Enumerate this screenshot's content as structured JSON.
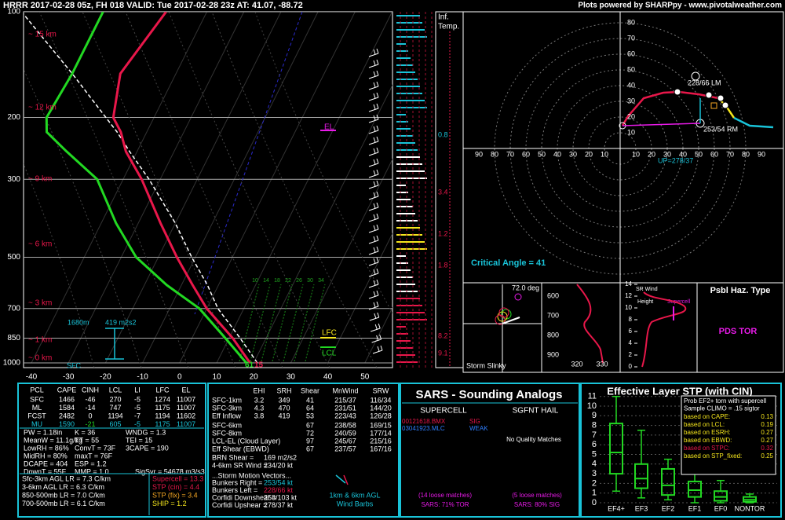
{
  "header": {
    "title": "HRRR 2017-02-28 05z, FH 018   VALID: Tue 2017-02-28 23z   AT: 41.07, -88.72",
    "credit": "Plots powered by SHARPpy - www.pivotalweather.com"
  },
  "skewt": {
    "pressure_ticks": [
      100,
      200,
      300,
      500,
      700,
      850,
      1000
    ],
    "temp_ticks": [
      -40,
      -30,
      -20,
      -10,
      0,
      10,
      20,
      30,
      40,
      50
    ],
    "height_labels": [
      "~ 15 km",
      "~ 12 km",
      "~ 9 km",
      "~ 6 km",
      "~ 3 km",
      "~ 1 km",
      "~ 0 km"
    ],
    "mixing_ratios": [
      10,
      14,
      18,
      22,
      26,
      30,
      34
    ],
    "profile": {
      "pressure": [
        1000,
        850,
        700,
        600,
        500,
        400,
        300,
        250,
        220,
        200,
        150,
        100
      ],
      "temperature": [
        19,
        11,
        0,
        -7,
        -15,
        -24,
        -35,
        -43,
        -47,
        -51,
        -55,
        -51
      ],
      "dewpoint": [
        18,
        9,
        -2,
        -14,
        -26,
        -36,
        -47,
        -59,
        -67,
        -69,
        -68,
        -68
      ],
      "parcel": [
        21,
        13,
        3,
        -3,
        -11,
        -20,
        -33,
        -42,
        -48,
        -53,
        -68,
        -90
      ]
    },
    "labels": {
      "el": "EL",
      "lfc": "LFC",
      "lcl": "LCL",
      "eff_top": "1680m",
      "eff_srh": "419 m2s2",
      "sfc": "SFC",
      "sfc_dew": "61",
      "sfc_temp": "15"
    }
  },
  "inferred_temp": {
    "title": [
      "Inf.",
      "Temp."
    ],
    "values": [
      0.8,
      3.4,
      1.2,
      1.8,
      8.2,
      9.1
    ]
  },
  "hodograph": {
    "yticks": [
      10,
      20,
      30,
      40,
      50,
      60,
      70,
      80
    ],
    "xticks_left": [
      90,
      80,
      70,
      60,
      50,
      40,
      30,
      20,
      10
    ],
    "xticks_right": [
      10,
      20,
      30,
      40,
      50,
      60,
      70,
      80,
      90
    ],
    "traces": [
      {
        "color": "#e8174a",
        "u": [
          1.5,
          5,
          15,
          27.5,
          37.5,
          50,
          62.5
        ],
        "v": [
          14.5,
          20.5,
          32,
          35.5,
          36,
          34.5,
          32
        ]
      },
      {
        "color": "#f5e61c",
        "u": [
          62.5,
          67.5,
          72.5
        ],
        "v": [
          32,
          27,
          19.5
        ]
      },
      {
        "color": "#19c3d8",
        "u": [
          72.5,
          82.5,
          97.5
        ],
        "v": [
          19.5,
          14.5,
          13.5
        ]
      }
    ],
    "lm": "228/66 LM",
    "rm": "253/54 RM",
    "up": "UP=278/37",
    "critical_angle": "Critical Angle = 41"
  },
  "slinky": {
    "angle": "72.0 deg",
    "ticks": [
      600,
      700,
      800,
      900
    ],
    "title": "Storm Slinky"
  },
  "theta": {
    "ticks": [
      320,
      330
    ]
  },
  "srwind": {
    "title": "SR Wind",
    "height": "Height",
    "supercell": "Supercell",
    "ticks": [
      0,
      2,
      4,
      6,
      8,
      10,
      12,
      14
    ]
  },
  "hazard": {
    "title": "Psbl Haz. Type",
    "value": "PDS TOR"
  },
  "thermo": {
    "header": [
      "PCL",
      "CAPE",
      "CINH",
      "LCL",
      "LI",
      "LFC",
      "EL"
    ],
    "rows": [
      [
        "SFC",
        "1466",
        "-46",
        "270",
        "-5",
        "1274",
        "11007"
      ],
      [
        "ML",
        "1584",
        "-14",
        "747",
        "-5",
        "1175",
        "11007"
      ],
      [
        "FCST",
        "2482",
        "0",
        "1194",
        "-7",
        "1194",
        "11602"
      ],
      [
        "MU",
        "1590",
        "-21",
        "605",
        "-5",
        "1175",
        "11007"
      ]
    ],
    "indices": [
      [
        "PW = 1.18in",
        "K = 36",
        "WNDG = 1.3"
      ],
      [
        "MeanW = 11.1g/kg",
        "TT = 55",
        "TEI = 15"
      ],
      [
        "LowRH = 86%",
        "ConvT = 73F",
        "3CAPE = 190"
      ],
      [
        "MidRH = 80%",
        "maxT = 76F"
      ],
      [
        "DCAPE = 404",
        "ESP = 1.2"
      ],
      [
        "DownT = 55F",
        "MMP = 1.0",
        "SigSvr = 54678 m3/s3"
      ]
    ],
    "lapse": [
      "Sfc-3km AGL LR = 7.3 C/km",
      "3-6km AGL LR = 6.3 C/km",
      "850-500mb LR = 7.0 C/km",
      "700-500mb LR = 6.1 C/km"
    ],
    "severe": [
      "Supercell = 13.3",
      "STP (cin) = 4.4",
      "STP (fix) = 3.4",
      "SHIP = 1.2"
    ]
  },
  "kinematic": {
    "header": [
      "EHI",
      "SRH",
      "Shear",
      "MnWind",
      "SRW"
    ],
    "rows": [
      {
        "label": "SFC-1km",
        "ehi": "3.2",
        "srh": "349",
        "shear": "41",
        "mnwind": "215/37",
        "srw": "116/34"
      },
      {
        "label": "SFC-3km",
        "ehi": "4.3",
        "srh": "470",
        "shear": "64",
        "mnwind": "231/51",
        "srw": "144/20"
      },
      {
        "label": "Eff Inflow",
        "ehi": "3.8",
        "srh": "419",
        "shear": "53",
        "mnwind": "223/43",
        "srw": "126/28"
      },
      {
        "label": "SFC-6km",
        "shear": "67",
        "mnwind": "238/58",
        "srw": "169/15"
      },
      {
        "label": "SFC-8km",
        "shear": "72",
        "mnwind": "240/59",
        "srw": "177/14"
      },
      {
        "label": "LCL-EL (Cloud Layer)",
        "shear": "97",
        "mnwind": "245/67",
        "srw": "215/16"
      },
      {
        "label": "Eff Shear (EBWD)",
        "shear": "67",
        "mnwind": "237/57",
        "srw": "167/16"
      }
    ],
    "extra": [
      [
        "BRN Shear =",
        "169 m2/s2"
      ],
      [
        "4-6km SR Wind =",
        "234/20 kt"
      ]
    ],
    "motion_title": "...Storm Motion Vectors...",
    "motion": [
      [
        "Bunkers Right =",
        "253/54 kt"
      ],
      [
        "Bunkers Left =",
        "228/66 kt"
      ],
      [
        "Corfidi Downshear =",
        "258/103 kt"
      ],
      [
        "Corfidi Upshear =",
        "278/37 kt"
      ]
    ],
    "barbs_label": [
      "1km & 6km AGL",
      "Wind Barbs"
    ]
  },
  "sars": {
    "title": "SARS - Sounding Analogs",
    "supercell": "SUPERCELL",
    "hail": "SGFNT HAIL",
    "matches": [
      [
        "00121618.BMX",
        "SIG"
      ],
      [
        "03041923.MLC",
        "WEAK"
      ]
    ],
    "hail_matches": "No Quality Matches",
    "loose": [
      "(14 loose matches)",
      "(5 loose matches)"
    ],
    "summary": [
      "SARS: 71% TOR",
      "SARS: 80% SIG"
    ]
  },
  "stp": {
    "title": "Effective Layer STP (with CIN)",
    "yticks": [
      0,
      1,
      2,
      3,
      4,
      5,
      6,
      7,
      8,
      9,
      10,
      11
    ],
    "categories": [
      "EF4+",
      "EF3",
      "EF2",
      "EF1",
      "EF0",
      "NONTOR"
    ],
    "boxes": [
      {
        "low": 1.2,
        "q1": 3,
        "median": 5.2,
        "q3": 8.2,
        "high": 11
      },
      {
        "low": 0.5,
        "q1": 1.5,
        "median": 2.5,
        "q3": 4,
        "high": 7.5
      },
      {
        "low": 0.3,
        "q1": 0.8,
        "median": 1.8,
        "q3": 3.5,
        "high": 4.5
      },
      {
        "low": 0,
        "q1": 0.6,
        "median": 1.3,
        "q3": 2.2,
        "high": 3
      },
      {
        "low": 0,
        "q1": 0.2,
        "median": 0.6,
        "q3": 1.2,
        "high": 2.3
      },
      {
        "low": 0,
        "q1": 0.1,
        "median": 0.3,
        "q3": 0.6,
        "high": 0.9
      }
    ],
    "legend": [
      "Prob EF2+ torn with supercell",
      "Sample CLIMO = .15 sigtor"
    ],
    "probs": [
      [
        "based on CAPE:",
        "0.13"
      ],
      [
        "based on LCL:",
        "0.19"
      ],
      [
        "based on ESRH:",
        "0.27"
      ],
      [
        "based on EBWD:",
        "0.27"
      ],
      [
        "based on STPC:",
        "0.32"
      ],
      [
        "based on STP_fixed:",
        "0.25"
      ]
    ]
  }
}
